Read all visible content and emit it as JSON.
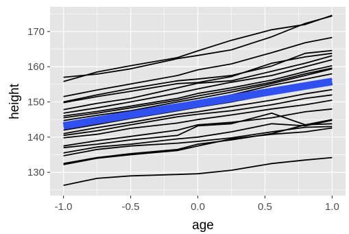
{
  "chart_data": {
    "type": "line",
    "xlabel": "age",
    "ylabel": "height",
    "xlim": [
      -1.1,
      1.1
    ],
    "ylim": [
      123.4,
      177
    ],
    "x_ticks": [
      -1.0,
      -0.5,
      0.0,
      0.5,
      1.0
    ],
    "x_tick_labels": [
      "-1.0",
      "-0.5",
      "0.0",
      "0.5",
      "1.0"
    ],
    "y_ticks": [
      130,
      140,
      150,
      160,
      170
    ],
    "y_tick_labels": [
      "130",
      "140",
      "150",
      "160",
      "170"
    ],
    "grid": true,
    "background": "#e5e5e5",
    "gridline_color": "#ffffff",
    "line_color": "#000000",
    "fit_color": "#3050f0",
    "ages": [
      -1.0,
      -0.75,
      -0.5,
      -0.15,
      0.0,
      0.25,
      0.55,
      0.8,
      1.0
    ],
    "series": [
      {
        "values": [
          155.8,
          158.5,
          160.3,
          162.6,
          164.5,
          167.5,
          170.5,
          172.0,
          174.6
        ]
      },
      {
        "values": [
          157.0,
          157.9,
          159.4,
          162.3,
          163.2,
          164.8,
          168.5,
          172.3,
          174.4
        ]
      },
      {
        "values": [
          151.5,
          153.4,
          155.1,
          157.5,
          159.1,
          160.8,
          164.0,
          166.8,
          168.3
        ]
      },
      {
        "values": [
          150.0,
          152.0,
          153.8,
          156.0,
          156.5,
          157.5,
          160.2,
          163.8,
          164.6
        ]
      },
      {
        "values": [
          149.8,
          151.5,
          153.0,
          155.2,
          155.5,
          157.2,
          161.0,
          162.8,
          163.8
        ]
      },
      {
        "values": [
          147.8,
          149.6,
          151.0,
          154.0,
          155.3,
          156.0,
          158.7,
          161.0,
          163.1
        ]
      },
      {
        "values": [
          146.8,
          148.3,
          150.0,
          152.5,
          153.7,
          155.6,
          157.5,
          160.0,
          162.0
        ]
      },
      {
        "values": [
          146.0,
          147.3,
          148.8,
          151.0,
          152.4,
          154.0,
          156.2,
          158.6,
          160.3
        ]
      },
      {
        "values": [
          145.5,
          146.8,
          148.3,
          150.5,
          151.7,
          153.4,
          155.6,
          158.0,
          159.6
        ]
      },
      {
        "values": [
          144.7,
          146.2,
          147.5,
          150.0,
          151.0,
          152.8,
          155.2,
          157.5,
          159.4
        ]
      },
      {
        "values": [
          144.0,
          145.5,
          147.0,
          149.0,
          150.2,
          152.0,
          154.7,
          156.5,
          158.0
        ]
      },
      {
        "values": [
          143.0,
          144.6,
          146.2,
          148.0,
          149.2,
          151.2,
          153.0,
          155.0,
          156.5
        ]
      },
      {
        "values": [
          142.0,
          143.6,
          145.3,
          147.5,
          148.5,
          150.0,
          152.2,
          154.3,
          155.5
        ]
      },
      {
        "values": [
          141.0,
          142.7,
          144.2,
          146.5,
          147.2,
          148.7,
          150.5,
          152.3,
          153.5
        ]
      },
      {
        "values": [
          140.5,
          141.8,
          143.5,
          145.8,
          146.5,
          147.5,
          149.2,
          151.0,
          152.0
        ]
      },
      {
        "values": [
          139.8,
          140.8,
          142.5,
          144.0,
          145.0,
          146.3,
          148.0,
          149.2,
          150.5
        ]
      },
      {
        "values": [
          137.5,
          139.0,
          140.2,
          142.0,
          143.5,
          144.2,
          145.5,
          147.2,
          148.0
        ]
      },
      {
        "values": [
          137.0,
          138.0,
          139.2,
          140.5,
          143.2,
          143.8,
          146.8,
          143.5,
          145.0
        ]
      },
      {
        "values": [
          135.5,
          137.2,
          138.0,
          139.5,
          140.0,
          141.5,
          143.8,
          143.2,
          144.8
        ]
      },
      {
        "values": [
          134.7,
          136.5,
          137.5,
          138.3,
          138.8,
          139.8,
          141.5,
          142.8,
          143.0
        ]
      },
      {
        "values": [
          132.5,
          134.2,
          135.3,
          136.5,
          138.0,
          139.2,
          141.0,
          143.5,
          143.8
        ]
      },
      {
        "values": [
          132.2,
          134.0,
          135.0,
          136.2,
          137.5,
          139.5,
          140.8,
          141.5,
          142.6
        ]
      },
      {
        "values": [
          126.3,
          128.3,
          129.0,
          129.4,
          129.6,
          130.6,
          132.5,
          133.5,
          134.2
        ]
      }
    ],
    "fit": {
      "x": [
        -1.0,
        1.0
      ],
      "y": [
        143.2,
        155.8
      ]
    }
  }
}
